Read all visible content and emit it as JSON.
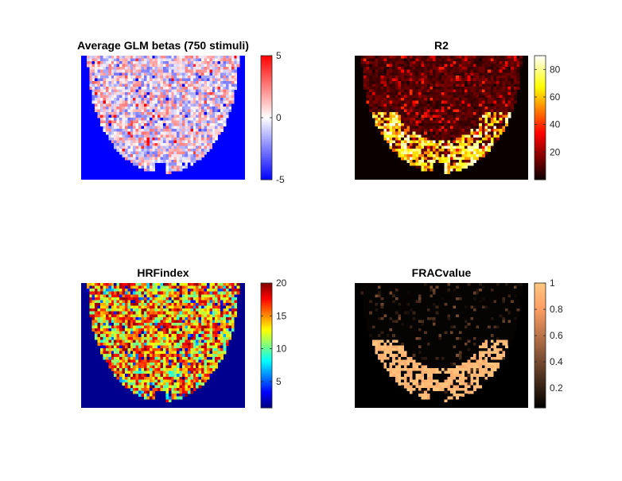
{
  "chart_data": [
    {
      "type": "heatmap",
      "title": "Average GLM betas (750 stimuli)",
      "colormap": "blue-white-red",
      "background_color": "#0000ff",
      "clim": [
        -5,
        5
      ],
      "colorbar_ticks": [
        -5,
        0,
        5
      ],
      "colorbar_tick_labels": [
        "-5",
        "0",
        "5"
      ]
    },
    {
      "type": "heatmap",
      "title": "R2",
      "colormap": "hot",
      "background_color": "#0b0000",
      "clim": [
        0,
        90
      ],
      "colorbar_ticks": [
        20,
        40,
        60,
        80
      ],
      "colorbar_tick_labels": [
        "20",
        "40",
        "60",
        "80"
      ]
    },
    {
      "type": "heatmap",
      "title": "HRFindex",
      "colormap": "jet",
      "background_color": "#00008f",
      "clim": [
        1,
        20
      ],
      "colorbar_ticks": [
        5,
        10,
        15,
        20
      ],
      "colorbar_tick_labels": [
        "5",
        "10",
        "15",
        "20"
      ]
    },
    {
      "type": "heatmap",
      "title": "FRACvalue",
      "colormap": "copper",
      "background_color": "#000000",
      "clim": [
        0.05,
        1
      ],
      "colorbar_ticks": [
        0.2,
        0.4,
        0.6,
        0.8,
        1
      ],
      "colorbar_tick_labels": [
        "0.2",
        "0.4",
        "0.6",
        "0.8",
        "1"
      ]
    }
  ]
}
